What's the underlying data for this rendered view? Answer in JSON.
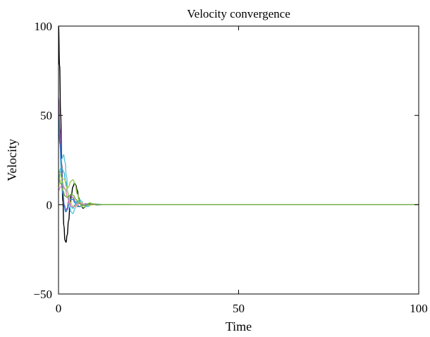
{
  "chart_data": {
    "type": "line",
    "title": "Velocity convergence",
    "xlabel": "Time",
    "ylabel": "Velocity",
    "xlim": [
      0,
      100
    ],
    "ylim": [
      -50,
      100
    ],
    "xticks": [
      {
        "value": 0,
        "label": "0"
      },
      {
        "value": 50,
        "label": "50"
      },
      {
        "value": 100,
        "label": "100"
      }
    ],
    "yticks": [
      {
        "value": -50,
        "label": "−50"
      },
      {
        "value": 0,
        "label": "0"
      },
      {
        "value": 50,
        "label": "50"
      },
      {
        "value": 100,
        "label": "100"
      }
    ],
    "grid": false,
    "legend": false,
    "series": [
      {
        "color": "#000000",
        "initial": 100,
        "tail": 14,
        "points": [
          [
            0,
            100
          ],
          [
            0.3,
            78
          ],
          [
            0.6,
            50
          ],
          [
            0.9,
            22
          ],
          [
            1.2,
            2
          ],
          [
            1.5,
            -12
          ],
          [
            1.8,
            -20
          ],
          [
            2.1,
            -21
          ],
          [
            2.4,
            -17
          ],
          [
            2.8,
            -9
          ],
          [
            3.2,
            -1
          ],
          [
            3.6,
            6
          ],
          [
            4.0,
            10
          ],
          [
            4.4,
            12
          ],
          [
            4.8,
            11
          ],
          [
            5.2,
            8
          ],
          [
            5.6,
            4
          ],
          [
            6.0,
            1
          ],
          [
            6.4,
            -1
          ],
          [
            6.8,
            -2
          ],
          [
            7.2,
            -1.5
          ],
          [
            7.6,
            -0.5
          ],
          [
            8.2,
            0.5
          ],
          [
            8.8,
            0.8
          ],
          [
            9.6,
            0.3
          ],
          [
            10.5,
            -0.1
          ],
          [
            12,
            0
          ]
        ]
      },
      {
        "color": "#9b59b6",
        "initial": 60,
        "tail": 12,
        "points": [
          [
            0,
            60
          ],
          [
            0.4,
            42
          ],
          [
            0.8,
            22
          ],
          [
            1.2,
            8
          ],
          [
            1.6,
            0
          ],
          [
            2.0,
            -3
          ],
          [
            2.4,
            -2
          ],
          [
            2.8,
            2
          ],
          [
            3.4,
            5
          ],
          [
            4.0,
            4
          ],
          [
            4.6,
            2
          ],
          [
            5.2,
            0
          ],
          [
            5.8,
            -1
          ],
          [
            6.6,
            -0.5
          ],
          [
            7.4,
            0.5
          ],
          [
            8.4,
            0.3
          ],
          [
            9.5,
            0
          ]
        ]
      },
      {
        "color": "#1f77d4",
        "initial": 48,
        "tail": 12,
        "points": [
          [
            0,
            48
          ],
          [
            0.4,
            34
          ],
          [
            0.8,
            18
          ],
          [
            1.2,
            6
          ],
          [
            1.6,
            -1
          ],
          [
            2.0,
            -4
          ],
          [
            2.4,
            -3
          ],
          [
            2.9,
            0
          ],
          [
            3.4,
            3
          ],
          [
            4.0,
            3
          ],
          [
            4.6,
            1
          ],
          [
            5.3,
            -1
          ],
          [
            6.0,
            -1
          ],
          [
            6.8,
            0
          ],
          [
            7.8,
            0.4
          ],
          [
            9.0,
            0
          ]
        ]
      },
      {
        "color": "#5bc0de",
        "initial": 12,
        "tail": 20,
        "points": [
          [
            0,
            12
          ],
          [
            0.5,
            20
          ],
          [
            1.0,
            26
          ],
          [
            1.4,
            28
          ],
          [
            1.8,
            24
          ],
          [
            2.2,
            16
          ],
          [
            2.6,
            7
          ],
          [
            3.0,
            0
          ],
          [
            3.5,
            -4
          ],
          [
            4.0,
            -5
          ],
          [
            4.6,
            -2
          ],
          [
            5.2,
            1
          ],
          [
            5.8,
            3
          ],
          [
            6.4,
            2
          ],
          [
            7.0,
            0
          ],
          [
            7.6,
            -1
          ],
          [
            8.3,
            -1
          ],
          [
            9.0,
            0
          ],
          [
            10,
            0.5
          ],
          [
            11,
            0.3
          ],
          [
            12.5,
            0
          ]
        ]
      },
      {
        "color": "#2ab6c4",
        "initial": 14,
        "tail": 16,
        "points": [
          [
            0,
            14
          ],
          [
            0.5,
            18
          ],
          [
            1.0,
            20
          ],
          [
            1.5,
            18
          ],
          [
            2.0,
            13
          ],
          [
            2.5,
            7
          ],
          [
            3.0,
            2
          ],
          [
            3.5,
            -1
          ],
          [
            4.0,
            -2
          ],
          [
            4.6,
            0
          ],
          [
            5.2,
            2
          ],
          [
            5.8,
            2
          ],
          [
            6.4,
            1
          ],
          [
            7.2,
            -0.5
          ],
          [
            8.0,
            -0.5
          ],
          [
            9.0,
            0.3
          ],
          [
            10.5,
            0
          ]
        ]
      },
      {
        "color": "#8ccd4b",
        "initial": 19,
        "tail": 20,
        "points": [
          [
            0,
            19
          ],
          [
            0.5,
            17
          ],
          [
            1.0,
            13
          ],
          [
            1.6,
            9
          ],
          [
            2.2,
            8
          ],
          [
            2.8,
            10
          ],
          [
            3.4,
            13
          ],
          [
            4.0,
            14
          ],
          [
            4.6,
            11
          ],
          [
            5.2,
            6
          ],
          [
            5.8,
            2
          ],
          [
            6.4,
            -1
          ],
          [
            7.0,
            -1.5
          ],
          [
            7.8,
            0
          ],
          [
            8.6,
            1
          ],
          [
            9.6,
            0.5
          ],
          [
            11,
            0
          ]
        ]
      },
      {
        "color": "#d4d44a",
        "initial": 10,
        "tail": 14,
        "points": [
          [
            0,
            10
          ],
          [
            0.5,
            13
          ],
          [
            1.0,
            15
          ],
          [
            1.6,
            14
          ],
          [
            2.2,
            10
          ],
          [
            2.8,
            5
          ],
          [
            3.4,
            1
          ],
          [
            4.0,
            -1
          ],
          [
            4.8,
            -1
          ],
          [
            5.6,
            0.5
          ],
          [
            6.4,
            1
          ],
          [
            7.4,
            0
          ],
          [
            8.6,
            -0.3
          ],
          [
            10,
            0
          ]
        ]
      },
      {
        "color": "#e37fc3",
        "initial": 8,
        "tail": 12,
        "points": [
          [
            0,
            8
          ],
          [
            0.6,
            10
          ],
          [
            1.2,
            11
          ],
          [
            1.8,
            9
          ],
          [
            2.4,
            5
          ],
          [
            3.0,
            1
          ],
          [
            3.6,
            -1
          ],
          [
            4.4,
            -1
          ],
          [
            5.2,
            0.5
          ],
          [
            6.2,
            0.8
          ],
          [
            7.4,
            0
          ],
          [
            9,
            0
          ]
        ]
      },
      {
        "color": "#6aaa3a",
        "initial": 15,
        "tail": 0,
        "points": [
          [
            0,
            15
          ],
          [
            0.6,
            12
          ],
          [
            1.2,
            8
          ],
          [
            1.8,
            5
          ],
          [
            2.4,
            4
          ],
          [
            3.0,
            5
          ],
          [
            3.6,
            6
          ],
          [
            4.2,
            5
          ],
          [
            4.8,
            3
          ],
          [
            5.6,
            1
          ],
          [
            6.4,
            0
          ],
          [
            7.2,
            -0.5
          ],
          [
            8.2,
            0
          ],
          [
            9.5,
            0.3
          ],
          [
            11,
            0
          ],
          [
            100,
            0
          ]
        ]
      }
    ]
  }
}
